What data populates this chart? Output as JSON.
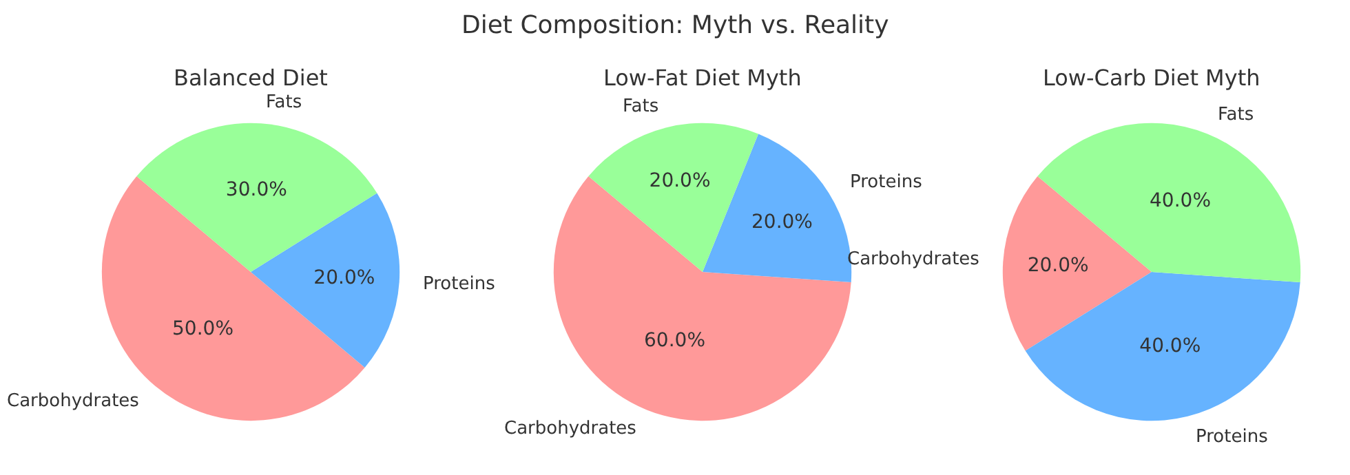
{
  "chart_data": [
    {
      "type": "other",
      "title": "Diet Composition: Myth vs. Reality"
    },
    {
      "type": "pie",
      "title": "Balanced Diet",
      "categories": [
        "Carbohydrates",
        "Proteins",
        "Fats"
      ],
      "values": [
        50,
        20,
        30
      ],
      "value_labels": [
        "50.0%",
        "20.0%",
        "30.0%"
      ],
      "colors": [
        "#ff9999",
        "#66b3ff",
        "#99ff99"
      ]
    },
    {
      "type": "pie",
      "title": "Low-Fat Diet Myth",
      "categories": [
        "Carbohydrates",
        "Proteins",
        "Fats"
      ],
      "values": [
        60,
        20,
        20
      ],
      "value_labels": [
        "60.0%",
        "20.0%",
        "20.0%"
      ],
      "colors": [
        "#ff9999",
        "#66b3ff",
        "#99ff99"
      ]
    },
    {
      "type": "pie",
      "title": "Low-Carb Diet Myth",
      "categories": [
        "Carbohydrates",
        "Proteins",
        "Fats"
      ],
      "values": [
        20,
        40,
        40
      ],
      "value_labels": [
        "20.0%",
        "40.0%",
        "40.0%"
      ],
      "colors": [
        "#ff9999",
        "#66b3ff",
        "#99ff99"
      ]
    }
  ]
}
